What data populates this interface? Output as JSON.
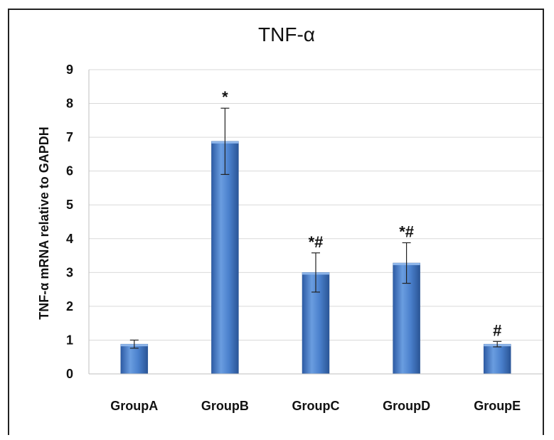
{
  "chart_data": {
    "type": "bar",
    "title": "TNF-α",
    "xlabel": "",
    "ylabel": "TNF-α mRNA relative to GAPDH",
    "categories": [
      "GroupA",
      "GroupB",
      "GroupC",
      "GroupD",
      "GroupE"
    ],
    "values": [
      0.88,
      6.88,
      3.0,
      3.28,
      0.88
    ],
    "errors": [
      0.12,
      0.98,
      0.58,
      0.6,
      0.08
    ],
    "annotations": [
      "",
      "*",
      "*#",
      "*#",
      "#"
    ],
    "ylim": [
      0,
      9
    ],
    "yticks": [
      "0",
      "1",
      "2",
      "3",
      "4",
      "5",
      "6",
      "7",
      "8",
      "9"
    ],
    "grid": true,
    "bar_color": "#4a7fc9",
    "bar_color_dark": "#2f5ea8",
    "bar_color_light": "#7aa7e3"
  }
}
